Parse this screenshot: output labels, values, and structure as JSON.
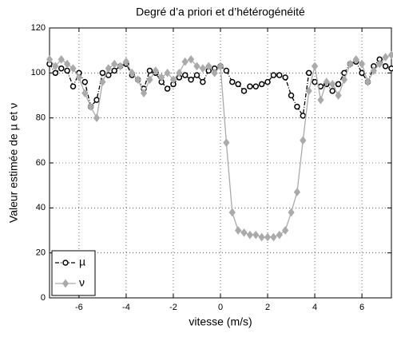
{
  "chart_data": {
    "type": "line",
    "title": "Degré d’a priori et d’hétérogénéité",
    "xlabel": "vitesse (m/s)",
    "ylabel": "Valeur estimée de µ et ν",
    "x": [
      -7.25,
      -7,
      -6.75,
      -6.5,
      -6.25,
      -6,
      -5.75,
      -5.5,
      -5.25,
      -5,
      -4.75,
      -4.5,
      -4.25,
      -4,
      -3.75,
      -3.5,
      -3.25,
      -3,
      -2.75,
      -2.5,
      -2.25,
      -2,
      -1.75,
      -1.5,
      -1.25,
      -1,
      -0.75,
      -0.5,
      -0.25,
      0,
      0.25,
      0.5,
      0.75,
      1,
      1.25,
      1.5,
      1.75,
      2,
      2.25,
      2.5,
      2.75,
      3,
      3.25,
      3.5,
      3.75,
      4,
      4.25,
      4.5,
      4.75,
      5,
      5.25,
      5.5,
      5.75,
      6,
      6.25,
      6.5,
      6.75,
      7,
      7.25
    ],
    "series": [
      {
        "name": "µ",
        "color": "#000000",
        "marker": "circle",
        "dash": "dashdot",
        "values": [
          104,
          100,
          102,
          101,
          94,
          100,
          96,
          85,
          88,
          100,
          99,
          101,
          103,
          104,
          99,
          97,
          93,
          101,
          100,
          96,
          93,
          95,
          98,
          99,
          97,
          99,
          96,
          101,
          102,
          103,
          101,
          96,
          95,
          92,
          94,
          94,
          95,
          96,
          99,
          99,
          98,
          90,
          85,
          81,
          100,
          96,
          94,
          95,
          92,
          95,
          100,
          104,
          105,
          100,
          96,
          103,
          106,
          103,
          102
        ]
      },
      {
        "name": "ν",
        "color": "#aaaaaa",
        "marker": "diamond",
        "dash": "solid",
        "values": [
          106,
          103,
          106,
          104,
          102,
          98,
          91,
          85,
          80,
          96,
          102,
          104,
          103,
          105,
          100,
          97,
          91,
          97,
          101,
          98,
          100,
          97,
          100,
          105,
          106,
          103,
          102,
          103,
          100,
          103,
          69,
          38,
          30,
          29,
          28,
          28,
          27,
          27,
          27,
          28,
          30,
          38,
          47,
          70,
          92,
          103,
          88,
          96,
          95,
          90,
          97,
          104,
          106,
          104,
          96,
          101,
          104,
          107,
          108
        ]
      }
    ],
    "xlim": [
      -7.25,
      7.25
    ],
    "ylim": [
      0,
      120
    ],
    "xticks": [
      -6,
      -4,
      -2,
      0,
      2,
      4,
      6
    ],
    "yticks": [
      0,
      20,
      40,
      60,
      80,
      100,
      120
    ],
    "grid": true,
    "legend": "lower left"
  }
}
